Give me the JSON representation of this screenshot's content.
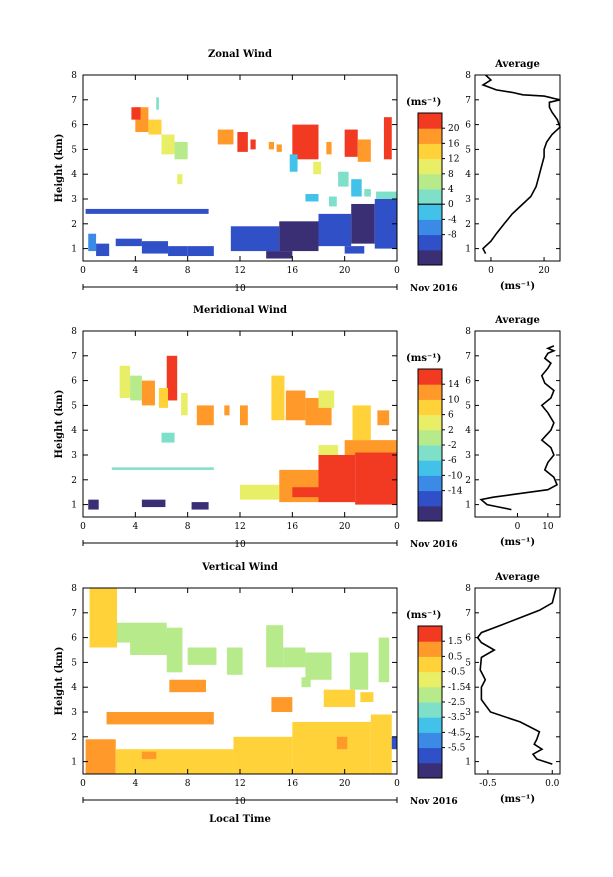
{
  "panels": [
    {
      "title": "Zonal Wind",
      "ylabel": "Height (km)",
      "unit": "(ms⁻¹)",
      "cbar_ticks": [
        "20",
        "16",
        "12",
        "8",
        "4",
        "0",
        "-4",
        "-8"
      ],
      "cbar_values": [
        20,
        16,
        12,
        8,
        4,
        0,
        -4,
        -8
      ],
      "avg_title": "Average",
      "avg_xticks": [
        "0",
        "20"
      ],
      "avg_unit": "(ms⁻¹)"
    },
    {
      "title": "Meridional Wind",
      "ylabel": "Height (km)",
      "unit": "(ms⁻¹)",
      "cbar_ticks": [
        "14",
        "10",
        "6",
        "2",
        "-2",
        "-6",
        "-10",
        "-14"
      ],
      "cbar_values": [
        14,
        10,
        6,
        2,
        -2,
        -6,
        -10,
        -14
      ],
      "avg_title": "Average",
      "avg_xticks": [
        "0",
        "10"
      ],
      "avg_unit": "(ms⁻¹)"
    },
    {
      "title": "Vertical Wind",
      "ylabel": "Height (km)",
      "unit": "(ms⁻¹)",
      "cbar_ticks": [
        "1.5",
        "0.5",
        "-0.5",
        "-1.5",
        "-2.5",
        "-3.5",
        "-4.5",
        "-5.5"
      ],
      "cbar_values": [
        1.5,
        0.5,
        -0.5,
        -1.5,
        -2.5,
        -3.5,
        -4.5,
        -5.5
      ],
      "avg_title": "Average",
      "avg_xticks": [
        "-0.5",
        "0.0"
      ],
      "avg_unit": "(ms⁻¹)"
    }
  ],
  "x_ticks": [
    "0",
    "4",
    "8",
    "12",
    "16",
    "20",
    "0"
  ],
  "y_ticks": [
    "1",
    "2",
    "3",
    "4",
    "5",
    "6",
    "7",
    "8"
  ],
  "date_day": "10",
  "date_month": "Nov 2016",
  "xlabel": "Local Time",
  "colors": {
    "scale": [
      "#3a2e75",
      "#3050c8",
      "#3a8ae6",
      "#42c2e8",
      "#7ee0c8",
      "#b6ea8a",
      "#e8ee66",
      "#ffd23a",
      "#ff9a2a",
      "#f23a22"
    ]
  },
  "chart_data": [
    {
      "type": "heatmap",
      "title": "Zonal Wind",
      "xlabel": "",
      "ylabel": "Height (km)",
      "xlim": [
        0,
        24
      ],
      "ylim": [
        0.5,
        8
      ],
      "clim": [
        -10,
        22
      ],
      "cells": [
        [
          4,
          6.7,
          5,
          5.7,
          18
        ],
        [
          5,
          6.2,
          6,
          5.6,
          14
        ],
        [
          6,
          5.6,
          7,
          4.8,
          10
        ],
        [
          7,
          5.3,
          8,
          4.6,
          8
        ],
        [
          3.7,
          6.7,
          4.4,
          6.2,
          20
        ],
        [
          5.6,
          7.1,
          5.8,
          6.6,
          4
        ],
        [
          10.3,
          5.8,
          11.5,
          5.2,
          18
        ],
        [
          11.8,
          5.7,
          12.6,
          4.9,
          20
        ],
        [
          12.8,
          5.4,
          13.2,
          5,
          20
        ],
        [
          14.2,
          5.3,
          14.6,
          5,
          18
        ],
        [
          14.8,
          5.2,
          15.2,
          4.9,
          18
        ],
        [
          16,
          6,
          18,
          4.6,
          20
        ],
        [
          18.6,
          5.3,
          19,
          4.8,
          18
        ],
        [
          20,
          5.8,
          21,
          4.7,
          20
        ],
        [
          21,
          5.4,
          22,
          4.5,
          18
        ],
        [
          23,
          6.3,
          23.6,
          4.6,
          20
        ],
        [
          15.8,
          4.8,
          16.4,
          4.1,
          2
        ],
        [
          17.6,
          4.5,
          18.2,
          4,
          10
        ],
        [
          7.2,
          4,
          7.6,
          3.6,
          12
        ],
        [
          19.5,
          4.1,
          20.3,
          3.5,
          4
        ],
        [
          20.5,
          3.8,
          21.3,
          3.1,
          2
        ],
        [
          21.5,
          3.4,
          22,
          3.1,
          4
        ],
        [
          22.4,
          3.3,
          24,
          2.9,
          4
        ],
        [
          17,
          3.2,
          18,
          2.9,
          0
        ],
        [
          18.8,
          3.1,
          19.4,
          2.7,
          4
        ],
        [
          0.2,
          2.6,
          9.6,
          2.4,
          -4
        ],
        [
          0.4,
          1.6,
          1,
          0.9,
          -2
        ],
        [
          1,
          1.2,
          2,
          0.7,
          -6
        ],
        [
          2.5,
          1.4,
          4.5,
          1.1,
          -4
        ],
        [
          4.5,
          1.3,
          6.5,
          0.8,
          -6
        ],
        [
          6.5,
          1.1,
          8,
          0.7,
          -4
        ],
        [
          8,
          1.1,
          10,
          0.7,
          -6
        ],
        [
          11.3,
          1.9,
          15,
          0.9,
          -6
        ],
        [
          15,
          2.1,
          18,
          0.9,
          -8
        ],
        [
          18,
          2.4,
          20.5,
          1.1,
          -6
        ],
        [
          20.5,
          2.8,
          22.3,
          1.2,
          -8
        ],
        [
          22.3,
          3,
          24,
          1,
          -4
        ],
        [
          14,
          0.9,
          16,
          0.6,
          -8
        ],
        [
          20,
          1.1,
          21.5,
          0.8,
          -6
        ]
      ],
      "avg_profile": {
        "xlim": [
          -6,
          26
        ],
        "x": [
          -2,
          -3,
          0,
          2,
          5,
          8,
          12,
          15,
          17,
          18,
          19,
          20,
          20,
          21,
          23,
          26,
          25,
          23,
          22,
          22,
          26,
          24,
          22,
          20,
          12,
          8,
          2,
          -3,
          0,
          -2
        ],
        "y": [
          0.8,
          1,
          1.3,
          1.6,
          2,
          2.4,
          2.8,
          3.1,
          3.5,
          3.9,
          4.3,
          4.7,
          5,
          5.3,
          5.6,
          5.9,
          6.2,
          6.5,
          6.7,
          6.9,
          7,
          7.05,
          7.1,
          7.15,
          7.2,
          7.3,
          7.4,
          7.6,
          7.8,
          8
        ]
      }
    },
    {
      "type": "heatmap",
      "title": "Meridional Wind",
      "xlabel": "",
      "ylabel": "Height (km)",
      "xlim": [
        0,
        24
      ],
      "ylim": [
        0.5,
        8
      ],
      "clim": [
        -16,
        16
      ],
      "cells": [
        [
          2.8,
          6.6,
          3.6,
          5.3,
          6
        ],
        [
          3.6,
          6.2,
          4.5,
          5.2,
          2
        ],
        [
          4.5,
          6,
          5.5,
          5,
          10
        ],
        [
          6.4,
          7,
          7.2,
          5.2,
          14
        ],
        [
          5.8,
          5.7,
          6.5,
          4.9,
          8
        ],
        [
          7.5,
          5.5,
          8,
          4.6,
          6
        ],
        [
          8.7,
          5,
          10,
          4.2,
          10
        ],
        [
          10.8,
          5,
          11.2,
          4.6,
          12
        ],
        [
          12,
          5,
          12.6,
          4.2,
          10
        ],
        [
          14.4,
          6.2,
          15.4,
          4.4,
          8
        ],
        [
          15.5,
          5.6,
          17,
          4.4,
          10
        ],
        [
          17,
          5.3,
          19,
          4.2,
          10
        ],
        [
          18,
          5.6,
          19.2,
          4.9,
          6
        ],
        [
          20.6,
          5,
          22,
          3.6,
          8
        ],
        [
          22.5,
          4.8,
          23.4,
          4.2,
          10
        ],
        [
          6,
          3.9,
          7,
          3.5,
          -2
        ],
        [
          18,
          3.4,
          19.5,
          3,
          6
        ],
        [
          20,
          3.6,
          24,
          3,
          10
        ],
        [
          2.2,
          2.5,
          10,
          2.4,
          -2
        ],
        [
          12,
          1.8,
          15,
          1.2,
          6
        ],
        [
          15,
          2.4,
          18,
          1.1,
          10
        ],
        [
          18,
          3,
          20.8,
          1.1,
          14
        ],
        [
          20.8,
          3.1,
          24,
          1,
          14
        ],
        [
          0.4,
          1.2,
          1.2,
          0.8,
          -14
        ],
        [
          4.5,
          1.2,
          6.3,
          0.9,
          -14
        ],
        [
          8.3,
          1.1,
          9.6,
          0.8,
          -14
        ],
        [
          16,
          1.7,
          20,
          1.3,
          14
        ]
      ],
      "avg_profile": {
        "xlim": [
          -14,
          14
        ],
        "x": [
          -2,
          -6,
          -10,
          -12,
          -8,
          -2,
          4,
          10,
          13,
          12,
          9,
          10,
          12,
          11,
          8,
          11,
          12,
          10,
          8,
          11,
          12,
          9,
          8,
          10,
          11,
          9,
          10,
          12,
          10,
          12
        ],
        "y": [
          0.8,
          0.9,
          1,
          1.2,
          1.3,
          1.4,
          1.5,
          1.6,
          1.8,
          2.1,
          2.4,
          2.7,
          3,
          3.3,
          3.6,
          4,
          4.3,
          4.7,
          5,
          5.3,
          5.6,
          5.9,
          6.2,
          6.5,
          6.7,
          6.9,
          7.1,
          7.2,
          7.3,
          7.4
        ]
      }
    },
    {
      "type": "heatmap",
      "title": "Vertical Wind",
      "xlabel": "Local Time",
      "ylabel": "Height (km)",
      "xlim": [
        0,
        24
      ],
      "ylim": [
        0.5,
        8
      ],
      "clim": [
        -6,
        2
      ],
      "cells": [
        [
          2.5,
          6.6,
          6.4,
          5.8,
          -1.5
        ],
        [
          3.6,
          6.2,
          7.4,
          5.3,
          -1.5
        ],
        [
          6.4,
          6.4,
          7.6,
          4.6,
          -1.5
        ],
        [
          8,
          5.6,
          10.2,
          4.9,
          -1.3
        ],
        [
          11,
          5.6,
          12.2,
          4.5,
          -1.5
        ],
        [
          14,
          6.5,
          15.3,
          4.8,
          -1.5
        ],
        [
          15.3,
          5.6,
          17,
          4.8,
          -1.5
        ],
        [
          17,
          5.4,
          19,
          4.3,
          -1.3
        ],
        [
          20.4,
          5.4,
          21.8,
          3.9,
          -1.3
        ],
        [
          22.6,
          6,
          23.4,
          4.2,
          -1.3
        ],
        [
          16.7,
          4.4,
          17.4,
          4,
          -1.8
        ],
        [
          0.5,
          8,
          2.6,
          5.6,
          0.1
        ],
        [
          6.6,
          4.3,
          9.4,
          3.8,
          0.6
        ],
        [
          1.8,
          3,
          10,
          2.5,
          0.5
        ],
        [
          14.4,
          3.6,
          16,
          3,
          0.4
        ],
        [
          18.4,
          3.9,
          20.8,
          3.2,
          0.2
        ],
        [
          21.2,
          3.8,
          22.2,
          3.4,
          0.3
        ],
        [
          0.2,
          1.9,
          2.5,
          0.5,
          0.5
        ],
        [
          2.5,
          1.5,
          11.5,
          0.5,
          0.3
        ],
        [
          11.5,
          2,
          16,
          0.5,
          0.1
        ],
        [
          16,
          2.6,
          22,
          0.5,
          0.1
        ],
        [
          22,
          2.9,
          23.6,
          0.5,
          0.2
        ],
        [
          23.6,
          2,
          24,
          1.5,
          -4.6
        ],
        [
          4.5,
          1.4,
          5.6,
          1.1,
          0.8
        ],
        [
          19.4,
          2,
          20.2,
          1.5,
          0.7
        ]
      ],
      "avg_profile": {
        "xlim": [
          -0.6,
          0.06
        ],
        "x": [
          0.0,
          -0.12,
          -0.15,
          -0.08,
          -0.14,
          -0.12,
          -0.1,
          -0.25,
          -0.48,
          -0.55,
          -0.55,
          -0.52,
          -0.56,
          -0.55,
          -0.45,
          -0.55,
          -0.58,
          -0.55,
          -0.4,
          -0.25,
          -0.1,
          0.0,
          0.03
        ],
        "y": [
          0.9,
          1.1,
          1.3,
          1.5,
          1.7,
          1.9,
          2.2,
          2.6,
          3,
          3.5,
          4,
          4.3,
          4.7,
          5.2,
          5.5,
          5.8,
          6,
          6.2,
          6.5,
          6.8,
          7.1,
          7.4,
          8
        ]
      }
    }
  ]
}
